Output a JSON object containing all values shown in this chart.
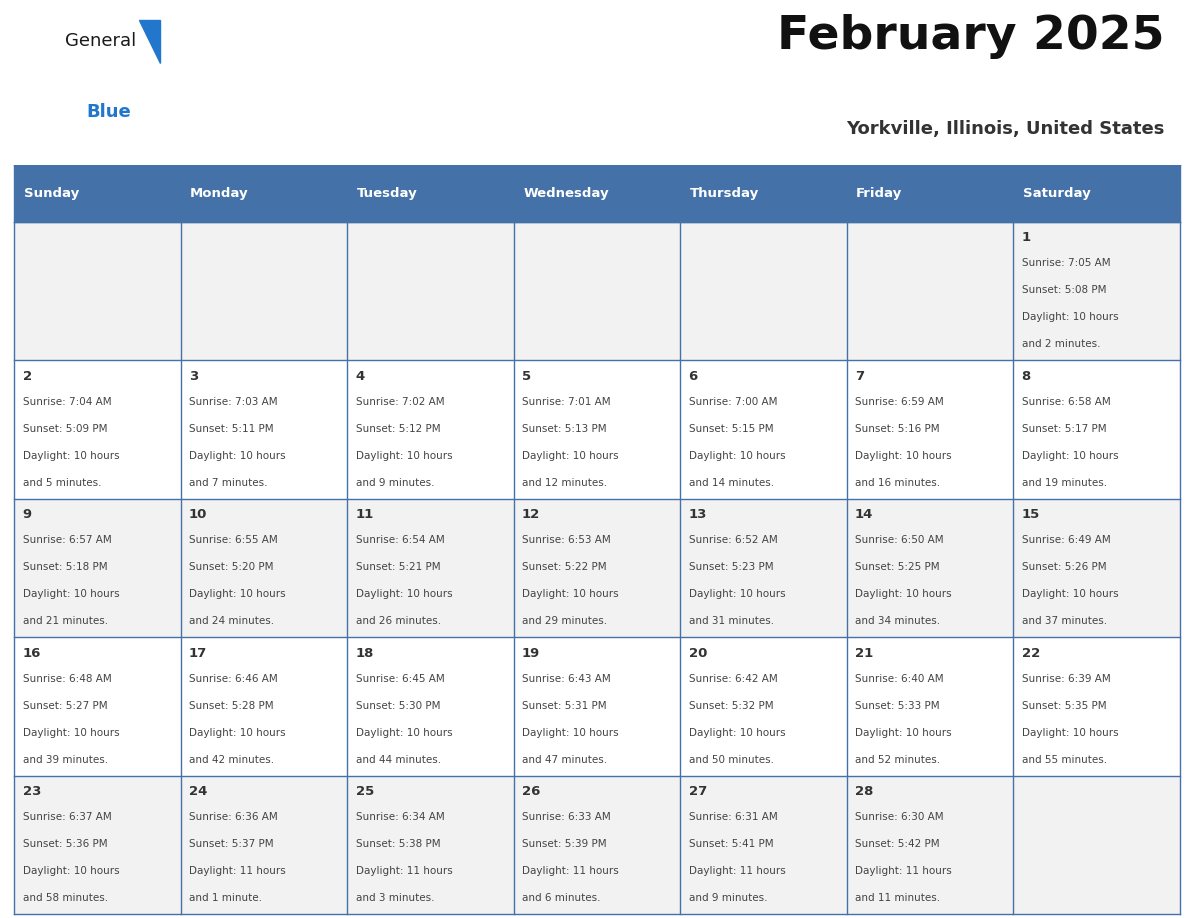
{
  "title": "February 2025",
  "subtitle": "Yorkville, Illinois, United States",
  "days_of_week": [
    "Sunday",
    "Monday",
    "Tuesday",
    "Wednesday",
    "Thursday",
    "Friday",
    "Saturday"
  ],
  "header_bg": "#4472A8",
  "header_text": "#FFFFFF",
  "cell_bg_row0": "#F2F2F2",
  "cell_bg_row1": "#FFFFFF",
  "cell_bg_row2": "#F2F2F2",
  "cell_bg_row3": "#FFFFFF",
  "cell_bg_row4": "#F2F2F2",
  "border_color": "#4472A8",
  "day_num_color": "#333333",
  "text_color": "#444444",
  "title_color": "#111111",
  "subtitle_color": "#333333",
  "logo_general_color": "#1a1a1a",
  "logo_blue_color": "#2277CC",
  "calendar_data": [
    {
      "day": 1,
      "col": 6,
      "row": 0,
      "sunrise": "7:05 AM",
      "sunset": "5:08 PM",
      "daylight": "10 hours",
      "daylight2": "and 2 minutes."
    },
    {
      "day": 2,
      "col": 0,
      "row": 1,
      "sunrise": "7:04 AM",
      "sunset": "5:09 PM",
      "daylight": "10 hours",
      "daylight2": "and 5 minutes."
    },
    {
      "day": 3,
      "col": 1,
      "row": 1,
      "sunrise": "7:03 AM",
      "sunset": "5:11 PM",
      "daylight": "10 hours",
      "daylight2": "and 7 minutes."
    },
    {
      "day": 4,
      "col": 2,
      "row": 1,
      "sunrise": "7:02 AM",
      "sunset": "5:12 PM",
      "daylight": "10 hours",
      "daylight2": "and 9 minutes."
    },
    {
      "day": 5,
      "col": 3,
      "row": 1,
      "sunrise": "7:01 AM",
      "sunset": "5:13 PM",
      "daylight": "10 hours",
      "daylight2": "and 12 minutes."
    },
    {
      "day": 6,
      "col": 4,
      "row": 1,
      "sunrise": "7:00 AM",
      "sunset": "5:15 PM",
      "daylight": "10 hours",
      "daylight2": "and 14 minutes."
    },
    {
      "day": 7,
      "col": 5,
      "row": 1,
      "sunrise": "6:59 AM",
      "sunset": "5:16 PM",
      "daylight": "10 hours",
      "daylight2": "and 16 minutes."
    },
    {
      "day": 8,
      "col": 6,
      "row": 1,
      "sunrise": "6:58 AM",
      "sunset": "5:17 PM",
      "daylight": "10 hours",
      "daylight2": "and 19 minutes."
    },
    {
      "day": 9,
      "col": 0,
      "row": 2,
      "sunrise": "6:57 AM",
      "sunset": "5:18 PM",
      "daylight": "10 hours",
      "daylight2": "and 21 minutes."
    },
    {
      "day": 10,
      "col": 1,
      "row": 2,
      "sunrise": "6:55 AM",
      "sunset": "5:20 PM",
      "daylight": "10 hours",
      "daylight2": "and 24 minutes."
    },
    {
      "day": 11,
      "col": 2,
      "row": 2,
      "sunrise": "6:54 AM",
      "sunset": "5:21 PM",
      "daylight": "10 hours",
      "daylight2": "and 26 minutes."
    },
    {
      "day": 12,
      "col": 3,
      "row": 2,
      "sunrise": "6:53 AM",
      "sunset": "5:22 PM",
      "daylight": "10 hours",
      "daylight2": "and 29 minutes."
    },
    {
      "day": 13,
      "col": 4,
      "row": 2,
      "sunrise": "6:52 AM",
      "sunset": "5:23 PM",
      "daylight": "10 hours",
      "daylight2": "and 31 minutes."
    },
    {
      "day": 14,
      "col": 5,
      "row": 2,
      "sunrise": "6:50 AM",
      "sunset": "5:25 PM",
      "daylight": "10 hours",
      "daylight2": "and 34 minutes."
    },
    {
      "day": 15,
      "col": 6,
      "row": 2,
      "sunrise": "6:49 AM",
      "sunset": "5:26 PM",
      "daylight": "10 hours",
      "daylight2": "and 37 minutes."
    },
    {
      "day": 16,
      "col": 0,
      "row": 3,
      "sunrise": "6:48 AM",
      "sunset": "5:27 PM",
      "daylight": "10 hours",
      "daylight2": "and 39 minutes."
    },
    {
      "day": 17,
      "col": 1,
      "row": 3,
      "sunrise": "6:46 AM",
      "sunset": "5:28 PM",
      "daylight": "10 hours",
      "daylight2": "and 42 minutes."
    },
    {
      "day": 18,
      "col": 2,
      "row": 3,
      "sunrise": "6:45 AM",
      "sunset": "5:30 PM",
      "daylight": "10 hours",
      "daylight2": "and 44 minutes."
    },
    {
      "day": 19,
      "col": 3,
      "row": 3,
      "sunrise": "6:43 AM",
      "sunset": "5:31 PM",
      "daylight": "10 hours",
      "daylight2": "and 47 minutes."
    },
    {
      "day": 20,
      "col": 4,
      "row": 3,
      "sunrise": "6:42 AM",
      "sunset": "5:32 PM",
      "daylight": "10 hours",
      "daylight2": "and 50 minutes."
    },
    {
      "day": 21,
      "col": 5,
      "row": 3,
      "sunrise": "6:40 AM",
      "sunset": "5:33 PM",
      "daylight": "10 hours",
      "daylight2": "and 52 minutes."
    },
    {
      "day": 22,
      "col": 6,
      "row": 3,
      "sunrise": "6:39 AM",
      "sunset": "5:35 PM",
      "daylight": "10 hours",
      "daylight2": "and 55 minutes."
    },
    {
      "day": 23,
      "col": 0,
      "row": 4,
      "sunrise": "6:37 AM",
      "sunset": "5:36 PM",
      "daylight": "10 hours",
      "daylight2": "and 58 minutes."
    },
    {
      "day": 24,
      "col": 1,
      "row": 4,
      "sunrise": "6:36 AM",
      "sunset": "5:37 PM",
      "daylight": "11 hours",
      "daylight2": "and 1 minute."
    },
    {
      "day": 25,
      "col": 2,
      "row": 4,
      "sunrise": "6:34 AM",
      "sunset": "5:38 PM",
      "daylight": "11 hours",
      "daylight2": "and 3 minutes."
    },
    {
      "day": 26,
      "col": 3,
      "row": 4,
      "sunrise": "6:33 AM",
      "sunset": "5:39 PM",
      "daylight": "11 hours",
      "daylight2": "and 6 minutes."
    },
    {
      "day": 27,
      "col": 4,
      "row": 4,
      "sunrise": "6:31 AM",
      "sunset": "5:41 PM",
      "daylight": "11 hours",
      "daylight2": "and 9 minutes."
    },
    {
      "day": 28,
      "col": 5,
      "row": 4,
      "sunrise": "6:30 AM",
      "sunset": "5:42 PM",
      "daylight": "11 hours",
      "daylight2": "and 11 minutes."
    }
  ]
}
